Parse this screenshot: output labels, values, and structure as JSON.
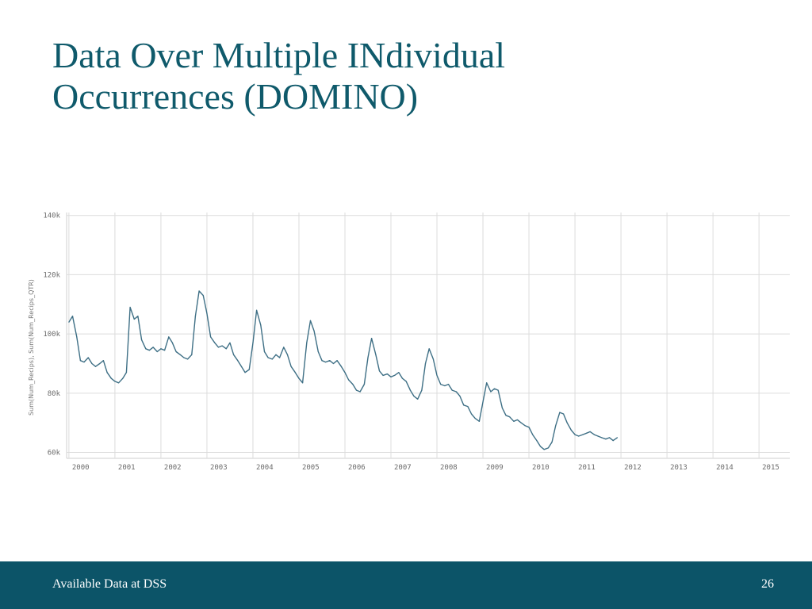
{
  "slide": {
    "title_line1": "Data Over Multiple INdividual",
    "title_line2": "Occurrences (DOMINO)",
    "footer_text": "Available Data at DSS",
    "page_number": "26"
  },
  "colors": {
    "title": "#0f5a6b",
    "footer_bg": "#0c5468",
    "monthly_series": "#3e6f85",
    "quarterly_series": "#c6566a",
    "grid": "#dcdcdc"
  },
  "chart_data": {
    "type": "line",
    "xlabel": "",
    "ylabel": "Sum(Num_Recips), Sum(Num_Recips_QTR)",
    "yticks": [
      "140k",
      "120k",
      "100k",
      "80k",
      "60k"
    ],
    "ytick_values": [
      140000,
      120000,
      100000,
      80000,
      60000
    ],
    "ylim": [
      58000,
      141000
    ],
    "xlim": [
      1999.95,
      2015.67
    ],
    "xticks": [
      "2000",
      "2001",
      "2002",
      "2003",
      "2004",
      "2005",
      "2006",
      "2007",
      "2008",
      "2009",
      "2010",
      "2011",
      "2012",
      "2013",
      "2014",
      "2015"
    ],
    "grid": true,
    "series": [
      {
        "key": "monthly",
        "points": [
          [
            2000.0,
            104000
          ],
          [
            2000.08,
            106000
          ],
          [
            2000.17,
            99000
          ],
          [
            2000.25,
            91000
          ],
          [
            2000.33,
            90500
          ],
          [
            2000.42,
            92000
          ],
          [
            2000.5,
            90000
          ],
          [
            2000.58,
            89000
          ],
          [
            2000.67,
            90000
          ],
          [
            2000.75,
            91000
          ],
          [
            2000.83,
            87000
          ],
          [
            2000.92,
            85000
          ],
          [
            2001.0,
            84000
          ],
          [
            2001.08,
            83500
          ],
          [
            2001.17,
            85000
          ],
          [
            2001.25,
            87000
          ],
          [
            2001.33,
            109000
          ],
          [
            2001.42,
            105000
          ],
          [
            2001.5,
            106000
          ],
          [
            2001.58,
            98000
          ],
          [
            2001.67,
            95000
          ],
          [
            2001.75,
            94500
          ],
          [
            2001.83,
            95500
          ],
          [
            2001.92,
            94000
          ],
          [
            2002.0,
            95000
          ],
          [
            2002.08,
            94500
          ],
          [
            2002.17,
            99000
          ],
          [
            2002.25,
            97000
          ],
          [
            2002.33,
            94000
          ],
          [
            2002.42,
            93000
          ],
          [
            2002.5,
            92000
          ],
          [
            2002.58,
            91500
          ],
          [
            2002.67,
            93000
          ],
          [
            2002.75,
            106000
          ],
          [
            2002.83,
            114500
          ],
          [
            2002.92,
            113000
          ],
          [
            2003.0,
            107000
          ],
          [
            2003.08,
            99000
          ],
          [
            2003.17,
            97000
          ],
          [
            2003.25,
            95500
          ],
          [
            2003.33,
            96000
          ],
          [
            2003.42,
            95000
          ],
          [
            2003.5,
            97000
          ],
          [
            2003.58,
            93000
          ],
          [
            2003.67,
            91000
          ],
          [
            2003.75,
            89000
          ],
          [
            2003.83,
            87000
          ],
          [
            2003.92,
            88000
          ],
          [
            2004.0,
            97000
          ],
          [
            2004.08,
            108000
          ],
          [
            2004.17,
            103000
          ],
          [
            2004.25,
            94000
          ],
          [
            2004.33,
            92000
          ],
          [
            2004.42,
            91500
          ],
          [
            2004.5,
            93000
          ],
          [
            2004.58,
            92000
          ],
          [
            2004.67,
            95500
          ],
          [
            2004.75,
            93000
          ],
          [
            2004.83,
            89000
          ],
          [
            2004.92,
            87000
          ],
          [
            2005.0,
            85000
          ],
          [
            2005.08,
            83500
          ],
          [
            2005.17,
            97000
          ],
          [
            2005.25,
            104500
          ],
          [
            2005.33,
            101000
          ],
          [
            2005.42,
            94000
          ],
          [
            2005.5,
            91000
          ],
          [
            2005.58,
            90500
          ],
          [
            2005.67,
            91000
          ],
          [
            2005.75,
            90000
          ],
          [
            2005.83,
            91000
          ],
          [
            2005.92,
            89000
          ],
          [
            2006.0,
            87000
          ],
          [
            2006.08,
            84500
          ],
          [
            2006.17,
            83000
          ],
          [
            2006.25,
            81000
          ],
          [
            2006.33,
            80500
          ],
          [
            2006.42,
            83000
          ],
          [
            2006.5,
            92000
          ],
          [
            2006.58,
            98500
          ],
          [
            2006.67,
            93000
          ],
          [
            2006.75,
            87500
          ],
          [
            2006.83,
            86000
          ],
          [
            2006.92,
            86500
          ],
          [
            2007.0,
            85500
          ],
          [
            2007.08,
            86000
          ],
          [
            2007.17,
            87000
          ],
          [
            2007.25,
            85000
          ],
          [
            2007.33,
            84000
          ],
          [
            2007.42,
            81000
          ],
          [
            2007.5,
            79000
          ],
          [
            2007.58,
            78000
          ],
          [
            2007.67,
            81000
          ],
          [
            2007.75,
            90000
          ],
          [
            2007.83,
            95000
          ],
          [
            2007.92,
            91500
          ],
          [
            2008.0,
            86000
          ],
          [
            2008.08,
            83000
          ],
          [
            2008.17,
            82500
          ],
          [
            2008.25,
            83000
          ],
          [
            2008.33,
            81000
          ],
          [
            2008.42,
            80500
          ],
          [
            2008.5,
            79000
          ],
          [
            2008.58,
            76000
          ],
          [
            2008.67,
            75500
          ],
          [
            2008.75,
            73000
          ],
          [
            2008.83,
            71500
          ],
          [
            2008.92,
            70500
          ],
          [
            2009.0,
            77000
          ],
          [
            2009.08,
            83500
          ],
          [
            2009.17,
            80500
          ],
          [
            2009.25,
            81500
          ],
          [
            2009.33,
            81000
          ],
          [
            2009.42,
            75000
          ],
          [
            2009.5,
            72500
          ],
          [
            2009.58,
            72000
          ],
          [
            2009.67,
            70500
          ],
          [
            2009.75,
            71000
          ],
          [
            2009.83,
            70000
          ],
          [
            2009.92,
            69000
          ],
          [
            2010.0,
            68500
          ],
          [
            2010.08,
            66000
          ],
          [
            2010.17,
            64000
          ],
          [
            2010.25,
            62000
          ],
          [
            2010.33,
            61000
          ],
          [
            2010.42,
            61500
          ],
          [
            2010.5,
            63500
          ],
          [
            2010.58,
            69000
          ],
          [
            2010.67,
            73500
          ],
          [
            2010.75,
            73000
          ],
          [
            2010.83,
            70000
          ],
          [
            2010.92,
            67500
          ],
          [
            2011.0,
            66000
          ],
          [
            2011.08,
            65500
          ],
          [
            2011.17,
            66000
          ],
          [
            2011.25,
            66500
          ],
          [
            2011.33,
            67000
          ],
          [
            2011.42,
            66000
          ],
          [
            2011.5,
            65500
          ],
          [
            2011.58,
            65000
          ],
          [
            2011.67,
            64500
          ],
          [
            2011.75,
            65000
          ],
          [
            2011.83,
            64000
          ],
          [
            2011.92,
            65000
          ]
        ]
      }
    ]
  }
}
